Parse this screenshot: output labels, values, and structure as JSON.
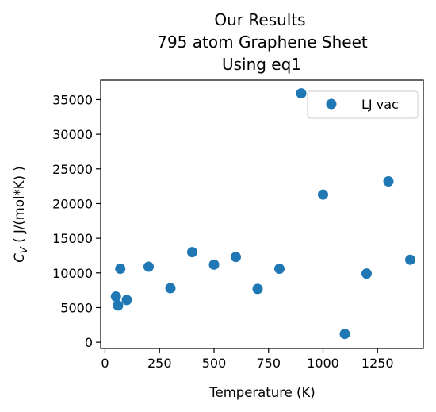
{
  "chart_data": {
    "type": "scatter",
    "title_lines": [
      "Our Results",
      "795 atom Graphene Sheet",
      "Using eq1"
    ],
    "xlabel": "Temperature (K)",
    "ylabel_prefix": "C",
    "ylabel_sub": "V",
    "ylabel_suffix": " ( J/(mol*K) )",
    "xlim": [
      -20,
      1460
    ],
    "ylim": [
      -900,
      37800
    ],
    "xticks": [
      0,
      250,
      500,
      750,
      1000,
      1250
    ],
    "yticks": [
      0,
      5000,
      10000,
      15000,
      20000,
      25000,
      30000,
      35000
    ],
    "legend_position": "upper right",
    "series": [
      {
        "name": "LJ vac",
        "color": "#1f77b4",
        "points": [
          {
            "x": 50,
            "y": 6600
          },
          {
            "x": 60,
            "y": 5300
          },
          {
            "x": 70,
            "y": 10600
          },
          {
            "x": 100,
            "y": 6100
          },
          {
            "x": 200,
            "y": 10900
          },
          {
            "x": 300,
            "y": 7800
          },
          {
            "x": 400,
            "y": 13000
          },
          {
            "x": 500,
            "y": 11200
          },
          {
            "x": 600,
            "y": 12300
          },
          {
            "x": 700,
            "y": 7700
          },
          {
            "x": 800,
            "y": 10600
          },
          {
            "x": 900,
            "y": 35900
          },
          {
            "x": 1000,
            "y": 21300
          },
          {
            "x": 1100,
            "y": 1200
          },
          {
            "x": 1200,
            "y": 9900
          },
          {
            "x": 1300,
            "y": 23200
          },
          {
            "x": 1400,
            "y": 11900
          }
        ]
      }
    ]
  }
}
